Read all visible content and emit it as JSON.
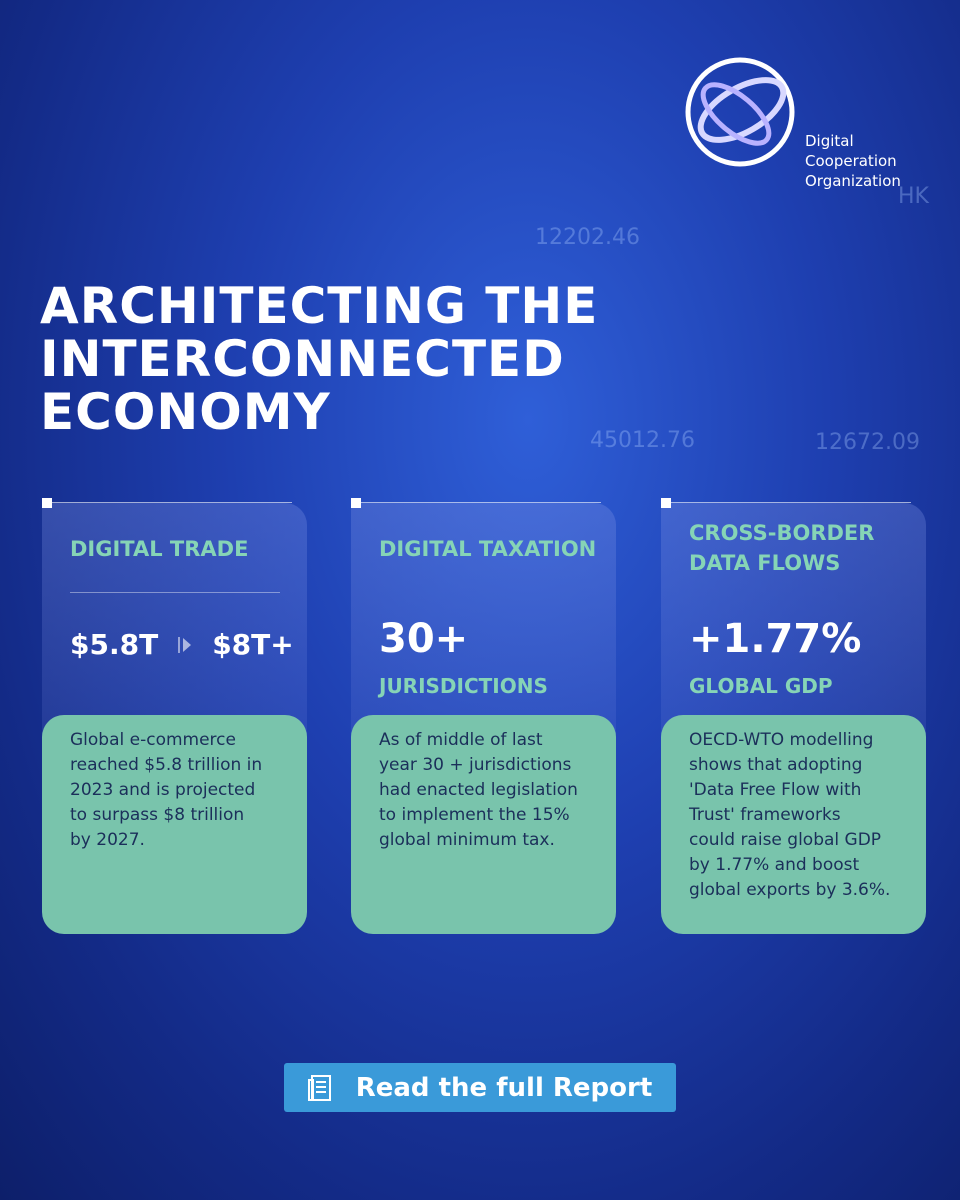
{
  "logo": {
    "lines": [
      "Digital",
      "Cooperation",
      "Organization"
    ]
  },
  "background_labels": [
    "12202.46",
    "45012.76",
    "12672.09",
    "HK"
  ],
  "title": {
    "lines": [
      "ARCHITECTING THE",
      "INTERCONNECTED",
      "ECONOMY"
    ]
  },
  "cards": [
    {
      "heading": [
        "DIGITAL TRADE"
      ],
      "stat_from": "$5.8T",
      "stat_to": "$8T+",
      "body": [
        "Global e-commerce",
        "reached $5.8 trillion in",
        "2023 and is projected",
        "to surpass $8 trillion",
        "by 2027."
      ]
    },
    {
      "heading": [
        "DIGITAL TAXATION"
      ],
      "stat": "30+",
      "stat_label": "JURISDICTIONS",
      "body": [
        "As of middle of last",
        "year 30 + jurisdictions",
        "had enacted legislation",
        "to implement the 15%",
        "global minimum tax."
      ]
    },
    {
      "heading": [
        "CROSS-BORDER",
        "DATA FLOWS"
      ],
      "stat": "+1.77%",
      "stat_label": "GLOBAL GDP",
      "body": [
        "OECD-WTO modelling",
        "shows that adopting",
        "'Data Free Flow with",
        "Trust' frameworks",
        "could raise global GDP",
        "by 1.77% and boost",
        "global exports by 3.6%."
      ]
    }
  ],
  "button": {
    "label": "Read the full Report"
  }
}
